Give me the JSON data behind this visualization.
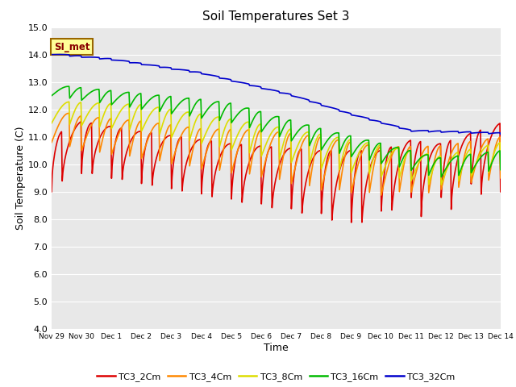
{
  "title": "Soil Temperatures Set 3",
  "xlabel": "Time",
  "ylabel": "Soil Temperature (C)",
  "ylim": [
    4.0,
    15.0
  ],
  "yticks": [
    4.0,
    5.0,
    6.0,
    7.0,
    8.0,
    9.0,
    10.0,
    11.0,
    12.0,
    13.0,
    14.0,
    15.0
  ],
  "bg_color": "#e8e8e8",
  "fig_bg": "#ffffff",
  "grid_color": "#ffffff",
  "series_colors": {
    "TC3_2Cm": "#dd0000",
    "TC3_4Cm": "#ff8800",
    "TC3_8Cm": "#dddd00",
    "TC3_16Cm": "#00bb00",
    "TC3_32Cm": "#0000cc"
  },
  "annotation_text": "SI_met",
  "annotation_bg": "#ffff99",
  "annotation_border": "#996600",
  "tick_labels": [
    "Nov 29",
    "Nov 30",
    "Dec 1",
    "Dec 2",
    "Dec 3",
    "Dec 4",
    "Dec 5",
    "Dec 6",
    "Dec 7",
    "Dec 8",
    "Dec 9",
    "Dec 10",
    "Dec 11",
    "Dec 12",
    "Dec 13",
    "Dec 14"
  ],
  "legend_labels": [
    "TC3_2Cm",
    "TC3_4Cm",
    "TC3_8Cm",
    "TC3_16Cm",
    "TC3_32Cm"
  ]
}
